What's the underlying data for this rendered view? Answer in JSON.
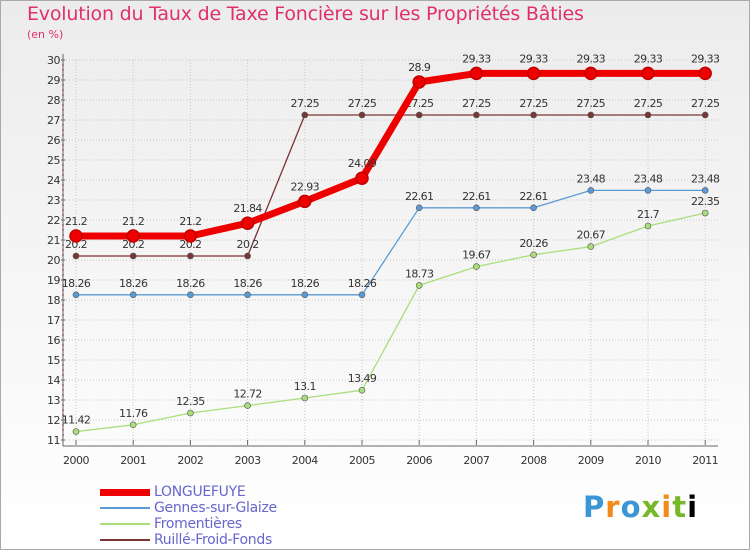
{
  "header": {
    "title": "Evolution du Taux de Taxe Foncière sur les Propriétés Bâties",
    "subtitle": "(en %)"
  },
  "brand": {
    "letters": [
      "P",
      "r",
      "o",
      "x",
      "i",
      "t",
      "i"
    ]
  },
  "colors": {
    "series_LONGUEFUYE": "#ee0000",
    "series_Gennes": "#5b9bd5",
    "series_Fromentieres": "#aade7b",
    "series_Ruille": "#7a3535",
    "axis": "#666666",
    "grid": "#c8c8c8",
    "minor_tick": "#e0306a"
  },
  "chart_data": {
    "type": "line",
    "title": "Evolution du Taux de Taxe Foncière sur les Propriétés Bâties",
    "ylabel": "(en %)",
    "xlabel": "",
    "ylim": [
      11,
      30
    ],
    "grid": true,
    "categories": [
      "2000",
      "2001",
      "2002",
      "2003",
      "2004",
      "2005",
      "2006",
      "2007",
      "2008",
      "2009",
      "2010",
      "2011"
    ],
    "yticks": [
      "11",
      "12",
      "13",
      "14",
      "15",
      "16",
      "17",
      "18",
      "19",
      "20",
      "21",
      "22",
      "23",
      "24",
      "25",
      "26",
      "27",
      "28",
      "29",
      "30"
    ],
    "series": [
      {
        "name": "Ruillé-Froid-Fonds",
        "key": "Ruille",
        "values": [
          20.2,
          20.2,
          20.2,
          20.2,
          27.25,
          27.25,
          27.25,
          27.25,
          27.25,
          27.25,
          27.25,
          27.25
        ],
        "labels": [
          "20.2",
          "20.2",
          "20.2",
          "20.2",
          "27.25",
          "27.25",
          "27.25",
          "27.25",
          "27.25",
          "27.25",
          "27.25",
          "27.25"
        ]
      },
      {
        "name": "Fromentières",
        "key": "Fromentieres",
        "values": [
          11.42,
          11.76,
          12.35,
          12.72,
          13.1,
          13.49,
          18.73,
          19.67,
          20.26,
          20.67,
          21.7,
          22.35
        ],
        "labels": [
          "11.42",
          "11.76",
          "12.35",
          "12.72",
          "13.1",
          "13.49",
          "18.73",
          "19.67",
          "20.26",
          "20.67",
          "21.7",
          "22.35"
        ]
      },
      {
        "name": "Gennes-sur-Glaize",
        "key": "Gennes",
        "values": [
          18.26,
          18.26,
          18.26,
          18.26,
          18.26,
          18.26,
          22.61,
          22.61,
          22.61,
          23.48,
          23.48,
          23.48
        ],
        "labels": [
          "18.26",
          "18.26",
          "18.26",
          "18.26",
          "18.26",
          "18.26",
          "22.61",
          "22.61",
          "22.61",
          "23.48",
          "23.48",
          "23.48"
        ]
      },
      {
        "name": "LONGUEFUYE",
        "key": "LONGUEFUYE",
        "values": [
          21.2,
          21.2,
          21.2,
          21.84,
          22.93,
          24.09,
          28.9,
          29.33,
          29.33,
          29.33,
          29.33,
          29.33
        ],
        "labels": [
          "21.2",
          "21.2",
          "21.2",
          "21.84",
          "22.93",
          "24.09",
          "28.9",
          "29.33",
          "29.33",
          "29.33",
          "29.33",
          "29.33"
        ]
      }
    ],
    "legend": [
      {
        "name": "LONGUEFUYE",
        "key": "LONGUEFUYE"
      },
      {
        "name": "Gennes-sur-Glaize",
        "key": "Gennes"
      },
      {
        "name": "Fromentières",
        "key": "Fromentieres"
      },
      {
        "name": "Ruillé-Froid-Fonds",
        "key": "Ruille"
      }
    ]
  }
}
